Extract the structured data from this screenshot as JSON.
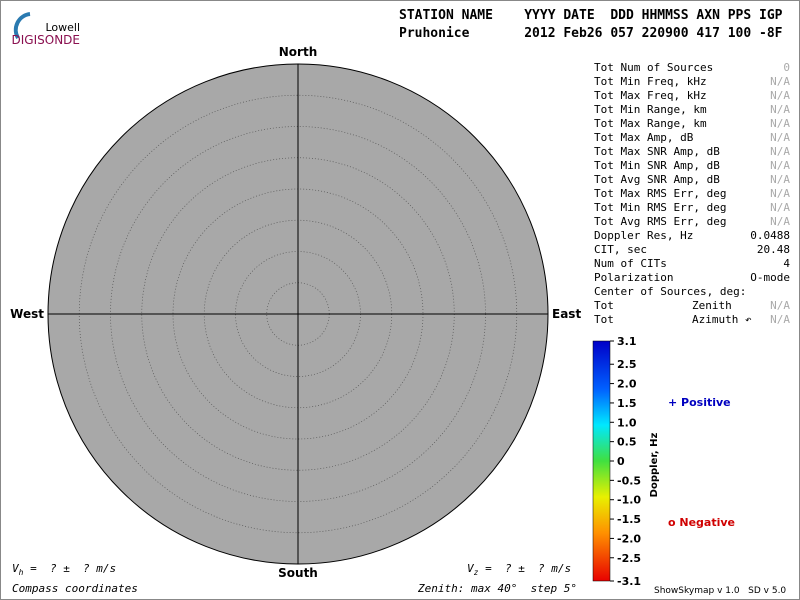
{
  "logo": {
    "top": "Lowell",
    "bottom": "DIGISONDE"
  },
  "header": {
    "labels": "STATION NAME    YYYY DATE  DDD HHMMSS AXN PPS IGP",
    "values": "Pruhonice       2012 Feb26 057 220900 417 100 -8F"
  },
  "compass": {
    "north": "North",
    "south": "South",
    "east": "East",
    "west": "West"
  },
  "stats": [
    {
      "label": "Tot Num of Sources",
      "value": "0"
    },
    {
      "label": "Tot Min Freq, kHz",
      "value": "N/A"
    },
    {
      "label": "Tot Max Freq, kHz",
      "value": "N/A"
    },
    {
      "label": "Tot Min Range, km",
      "value": "N/A"
    },
    {
      "label": "Tot Max Range, km",
      "value": "N/A"
    },
    {
      "label": "Tot Max Amp, dB",
      "value": "N/A"
    },
    {
      "label": "Tot Max SNR Amp, dB",
      "value": "N/A"
    },
    {
      "label": "Tot Min SNR Amp, dB",
      "value": "N/A"
    },
    {
      "label": "Tot Avg SNR Amp, dB",
      "value": "N/A"
    },
    {
      "label": "Tot Max RMS Err, deg",
      "value": "N/A"
    },
    {
      "label": "Tot Min RMS Err, deg",
      "value": "N/A"
    },
    {
      "label": "Tot Avg RMS Err, deg",
      "value": "N/A"
    },
    {
      "label": "Doppler Res, Hz",
      "value": "0.0488"
    },
    {
      "label": "CIT, sec",
      "value": "20.48"
    },
    {
      "label": "Num of CITs",
      "value": "4"
    },
    {
      "label": "Polarization",
      "value": "O-mode"
    },
    {
      "label": "Center of Sources, deg:"
    },
    {
      "label": "Tot",
      "mid": "Zenith",
      "value": "N/A"
    },
    {
      "label": "Tot",
      "mid": "Azimuth ↶",
      "value": "N/A"
    }
  ],
  "colorbar": {
    "title": "Doppler, Hz",
    "ylim": [
      -3.1,
      3.1
    ],
    "yticks": [
      3.1,
      2.5,
      {
        "value": 2,
        "label": "2.0"
      },
      1.5,
      {
        "value": 1,
        "label": "1.0"
      },
      0.5,
      0,
      -0.5,
      {
        "value": -1,
        "label": "-1.0"
      },
      -1.5,
      {
        "value": -2,
        "label": "-2.0"
      },
      -2.5,
      -3.1
    ],
    "positive": "+ Positive",
    "negative": "o Negative"
  },
  "footer": {
    "vh": {
      "symbol": "V",
      "sub": "h",
      "rest": " =  ? ±  ? m/s"
    },
    "vz": {
      "symbol": "V",
      "sub": "z",
      "rest": " =  ? ±  ? m/s"
    },
    "coords": "Compass coordinates",
    "zenith": "Zenith: max 40°  step 5°",
    "version": "ShowSkymap v 1.0   SD v 5.0"
  }
}
